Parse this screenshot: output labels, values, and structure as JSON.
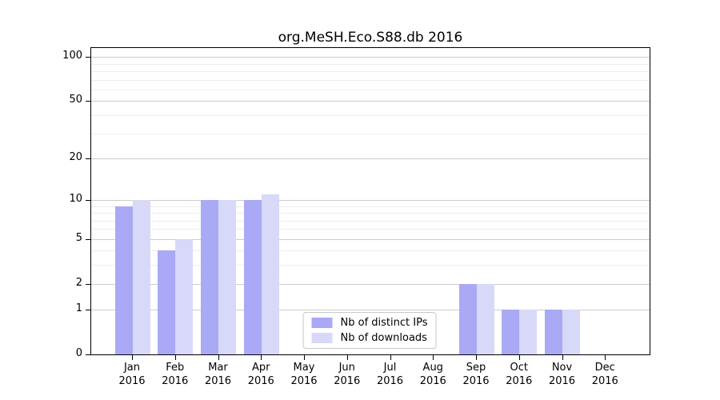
{
  "chart_data": {
    "type": "bar",
    "title": "org.MeSH.Eco.S88.db 2016",
    "scale": "log1p",
    "categories": [
      "Jan",
      "Feb",
      "Mar",
      "Apr",
      "May",
      "Jun",
      "Jul",
      "Aug",
      "Sep",
      "Oct",
      "Nov",
      "Dec"
    ],
    "year_label": "2016",
    "series": [
      {
        "name": "Nb of distinct IPs",
        "color": "#a9a9f5",
        "values": [
          9,
          4,
          10,
          10,
          0,
          0,
          0,
          0,
          2,
          1,
          1,
          0
        ]
      },
      {
        "name": "Nb of downloads",
        "color": "#d8d8f8",
        "values": [
          10,
          5,
          10,
          11,
          0,
          0,
          0,
          0,
          2,
          1,
          1,
          0
        ]
      }
    ],
    "y_ticks": [
      0,
      1,
      2,
      5,
      10,
      20,
      50,
      100
    ],
    "minor_gridlines": [
      3,
      4,
      6,
      7,
      8,
      9,
      30,
      40,
      60,
      70,
      80,
      90
    ],
    "ylim": [
      0,
      117
    ],
    "xlabel": "",
    "ylabel": "",
    "grid": "on",
    "legend": {
      "position": "lower center"
    },
    "colors": {
      "axis": "#000000",
      "grid_major": "#cccccc",
      "grid_minor": "#ececec",
      "legend_border": "#c8c8c8",
      "background": "#ffffff"
    }
  }
}
